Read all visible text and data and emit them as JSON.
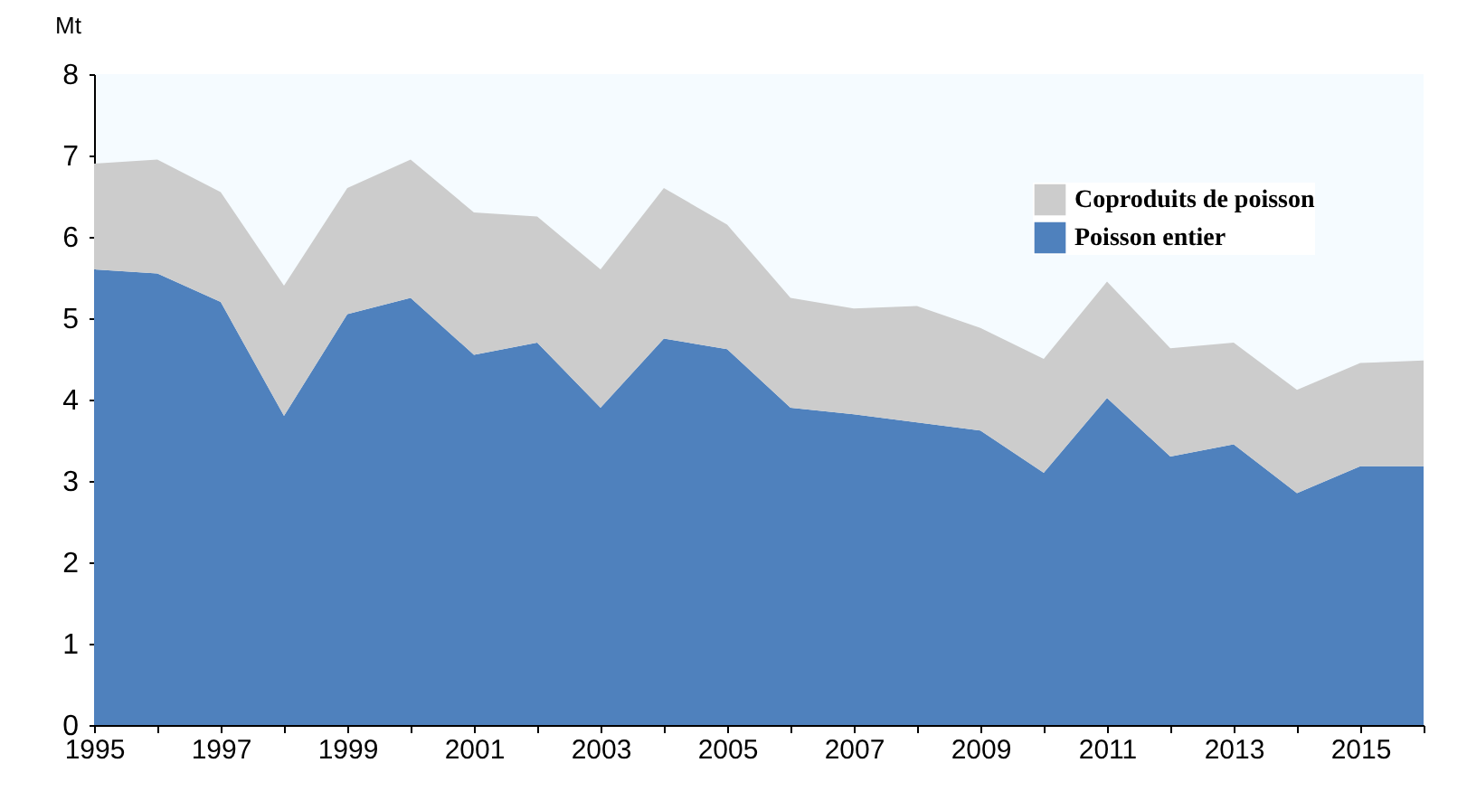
{
  "chart_data": {
    "type": "area",
    "ylabel": "Mt",
    "stacked": true,
    "x": [
      1995,
      1996,
      1997,
      1998,
      1999,
      2000,
      2001,
      2002,
      2003,
      2004,
      2005,
      2006,
      2007,
      2008,
      2009,
      2010,
      2011,
      2012,
      2013,
      2014,
      2015,
      2016
    ],
    "series": [
      {
        "name": "Poisson entier",
        "color": "#4f81bd",
        "values": [
          5.6,
          5.55,
          5.2,
          3.8,
          5.05,
          5.25,
          4.55,
          4.7,
          3.9,
          4.75,
          4.62,
          3.9,
          3.82,
          3.72,
          3.62,
          3.1,
          4.02,
          3.3,
          3.45,
          2.85,
          3.18,
          3.18
        ]
      },
      {
        "name": "Coproduits de poisson",
        "color": "#cccccc",
        "values": [
          1.3,
          1.4,
          1.35,
          1.6,
          1.55,
          1.7,
          1.75,
          1.55,
          1.7,
          1.85,
          1.53,
          1.35,
          1.3,
          1.43,
          1.26,
          1.4,
          1.43,
          1.33,
          1.25,
          1.27,
          1.27,
          1.3
        ]
      }
    ],
    "xlim": [
      1995,
      2016
    ],
    "xticks": [
      1995,
      {
        "value": 1996,
        "label": null
      },
      1997,
      {
        "value": 1998,
        "label": null
      },
      1999,
      {
        "value": 2000,
        "label": null
      },
      2001,
      {
        "value": 2002,
        "label": null
      },
      2003,
      {
        "value": 2004,
        "label": null
      },
      2005,
      {
        "value": 2006,
        "label": null
      },
      2007,
      {
        "value": 2008,
        "label": null
      },
      2009,
      {
        "value": 2010,
        "label": null
      },
      2011,
      {
        "value": 2012,
        "label": null
      },
      2013,
      {
        "value": 2014,
        "label": null
      },
      2015,
      {
        "value": 2016,
        "label": null
      }
    ],
    "ylim": [
      0,
      8
    ],
    "yticks": [
      0,
      1,
      2,
      3,
      4,
      5,
      6,
      7,
      8
    ],
    "grid": false,
    "legend": "top right"
  }
}
